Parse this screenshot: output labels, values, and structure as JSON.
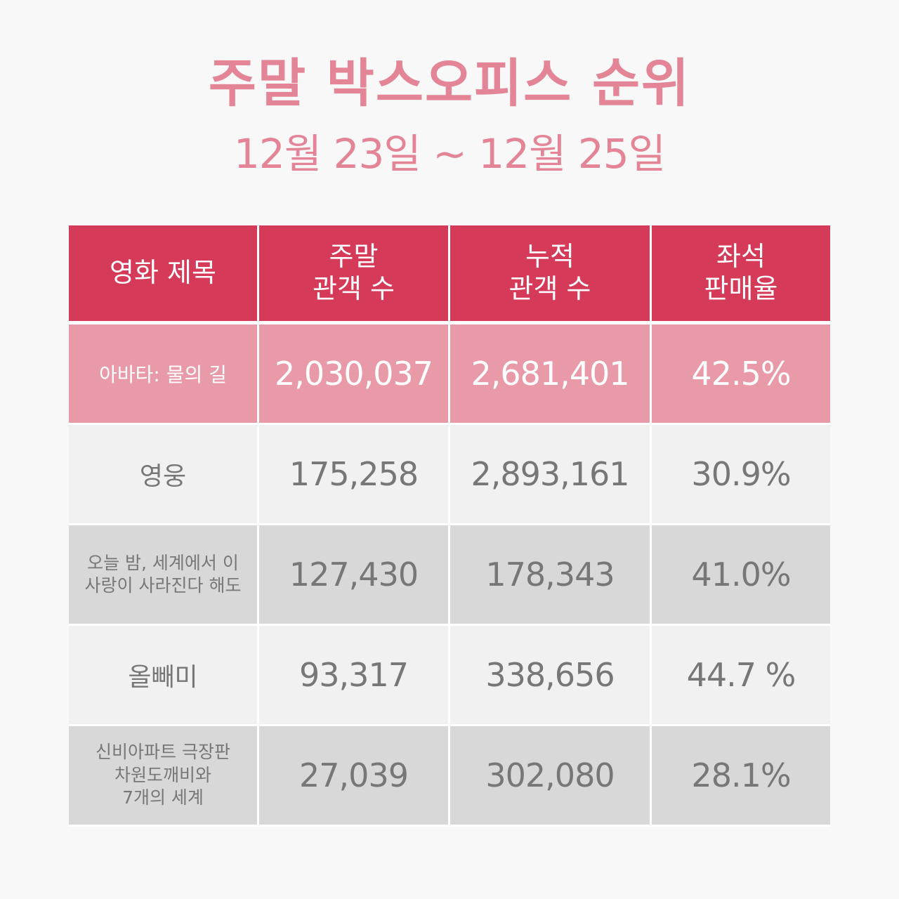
{
  "title": "주말 박스오피스 순위",
  "subtitle": "12월 23일 ~ 12월 25일",
  "colors": {
    "title": "#e38596",
    "header_bg": "#d53a59",
    "highlight_row_bg": "#e89aa9",
    "light_row_bg": "#f1f1f1",
    "dark_row_bg": "#d8d8d8",
    "body_text": "#777777",
    "page_bg": "#f8f8f8"
  },
  "table": {
    "headers": [
      {
        "line1": "영화 제목",
        "line2": ""
      },
      {
        "line1": "주말",
        "line2": "관객 수"
      },
      {
        "line1": "누적",
        "line2": "관객 수"
      },
      {
        "line1": "좌석",
        "line2": "판매율"
      }
    ],
    "rows": [
      {
        "title_lines": [
          "아바타: 물의 길"
        ],
        "weekend": "2,030,037",
        "cumulative": "2,681,401",
        "seat_rate": "42.5%"
      },
      {
        "title_lines": [
          "영웅"
        ],
        "weekend": "175,258",
        "cumulative": "2,893,161",
        "seat_rate": "30.9%"
      },
      {
        "title_lines": [
          "오늘 밤, 세계에서 이",
          "사랑이 사라진다 해도"
        ],
        "weekend": "127,430",
        "cumulative": "178,343",
        "seat_rate": "41.0%"
      },
      {
        "title_lines": [
          "올빼미"
        ],
        "weekend": "93,317",
        "cumulative": "338,656",
        "seat_rate": "44.7 %"
      },
      {
        "title_lines": [
          "신비아파트 극장판",
          "차원도깨비와",
          "7개의 세계"
        ],
        "weekend": "27,039",
        "cumulative": "302,080",
        "seat_rate": "28.1%"
      }
    ]
  }
}
